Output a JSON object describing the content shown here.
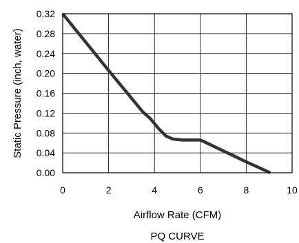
{
  "chart_data": {
    "type": "line",
    "title": "PQ CURVE",
    "xlabel": "Airflow Rate (CFM)",
    "ylabel": "Static Pressure (inch, water)",
    "xlim": [
      0,
      10
    ],
    "ylim": [
      0,
      0.32
    ],
    "x_ticks": [
      "0",
      "2",
      "4",
      "6",
      "8",
      "10"
    ],
    "y_ticks": [
      "0.00",
      "0.04",
      "0.08",
      "0.12",
      "0.16",
      "0.20",
      "0.24",
      "0.28",
      "0.32"
    ],
    "grid": true,
    "legend": "none",
    "line_color": "#333333",
    "series": [
      {
        "x": [
          0,
          1,
          2,
          3,
          3.5,
          3.8,
          4.2,
          4.5,
          4.8,
          5.2,
          6.0,
          6.1,
          7.0,
          8.0,
          9.05
        ],
        "y": [
          0.32,
          0.263,
          0.206,
          0.15,
          0.122,
          0.11,
          0.088,
          0.074,
          0.068,
          0.066,
          0.066,
          0.064,
          0.044,
          0.022,
          0.0
        ]
      }
    ]
  }
}
